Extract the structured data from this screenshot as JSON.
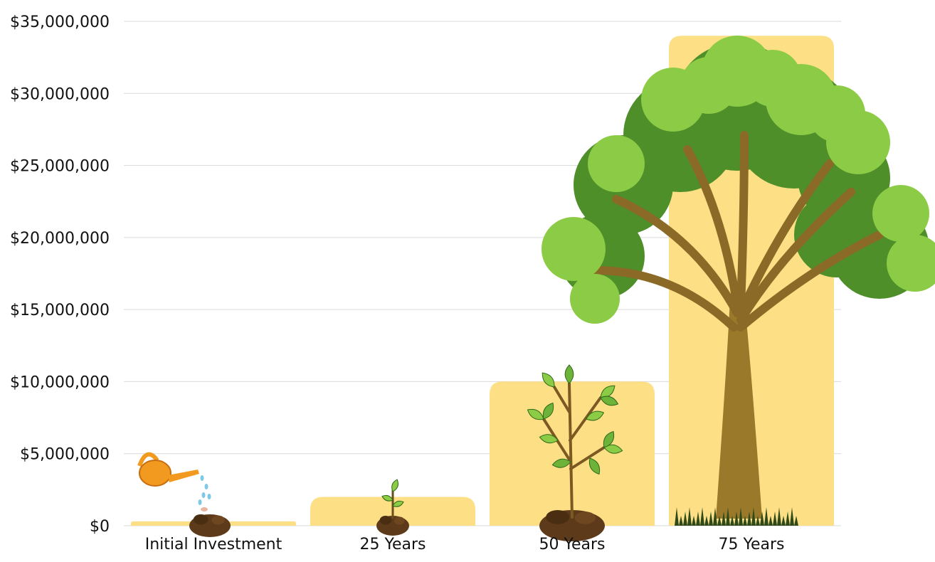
{
  "chart_data": {
    "type": "bar",
    "categories": [
      "Initial Investment",
      "25 Years",
      "50 Years",
      "75 Years"
    ],
    "values": [
      300000,
      2000000,
      10000000,
      34000000
    ],
    "title": "",
    "xlabel": "",
    "ylabel": "",
    "ylim": [
      0,
      35000000
    ],
    "yticks": [
      0,
      5000000,
      10000000,
      15000000,
      20000000,
      25000000,
      30000000,
      35000000
    ],
    "ytick_labels": [
      "$0",
      "$5,000,000",
      "$10,000,000",
      "$15,000,000",
      "$20,000,000",
      "$25,000,000",
      "$30,000,000",
      "$35,000,000"
    ],
    "grid": true,
    "legend": "none",
    "colors": {
      "bar": "#FDDF86",
      "grid": "#D9D9D9",
      "soil": "#5C3A1A",
      "leaf_light": "#8CCB45",
      "leaf_dark": "#4E8F2A",
      "trunk": "#9A7A2A",
      "can": "#F29A1F",
      "water": "#7FC8E8"
    },
    "illustrations": [
      "watering-can-with-seed",
      "sprout",
      "sapling",
      "tree"
    ]
  }
}
